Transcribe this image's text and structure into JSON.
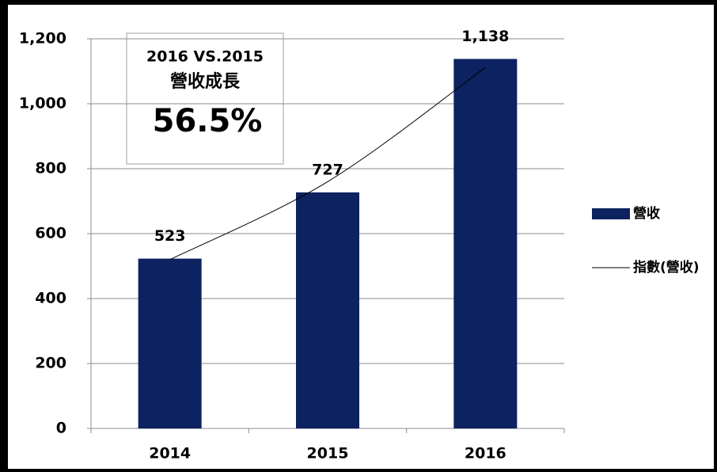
{
  "chart_data": {
    "type": "bar",
    "categories": [
      "2014",
      "2015",
      "2016"
    ],
    "series": [
      {
        "name": "營收",
        "type": "bar",
        "color": "#0d2260",
        "values": [
          523,
          727,
          1138
        ],
        "value_labels": [
          "523",
          "727",
          "1,138"
        ]
      },
      {
        "name": "指數(營收)",
        "type": "line",
        "color": "#000000",
        "values": [
          520,
          760,
          1112
        ]
      }
    ],
    "ylim": [
      0,
      1200
    ],
    "yticks": [
      0,
      200,
      400,
      600,
      800,
      {
        "value": 1000,
        "label": "1,000"
      },
      {
        "value": 1200,
        "label": "1,200"
      }
    ],
    "grid": true,
    "legend": "right",
    "annotation": {
      "lines": [
        "2016 VS.2015",
        "營收成長",
        "56.5%"
      ],
      "highlight_color": "#ff0000"
    }
  }
}
